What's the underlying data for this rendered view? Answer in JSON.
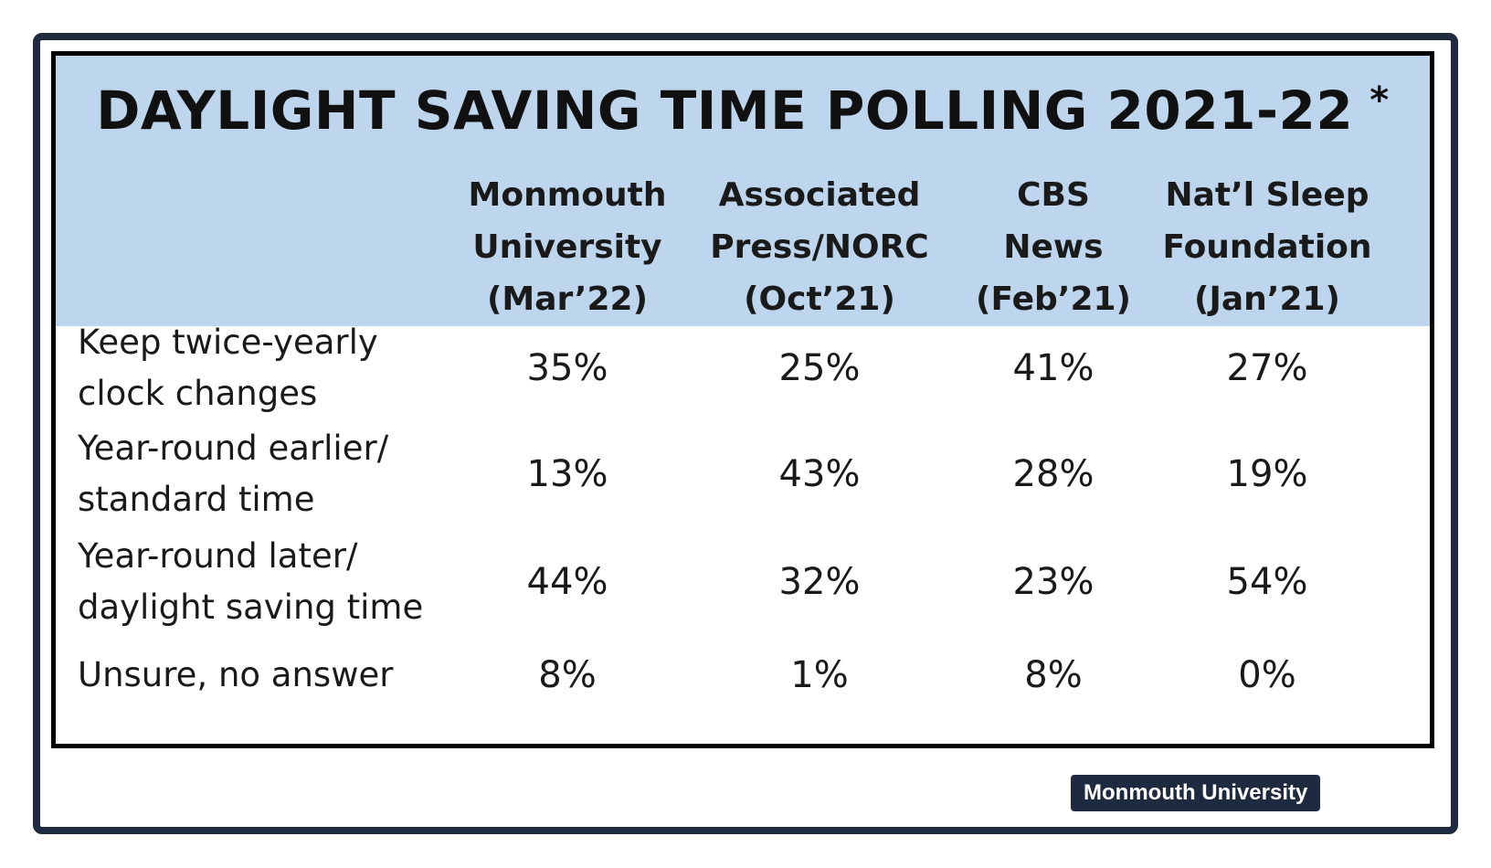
{
  "chart_data": {
    "type": "table",
    "title": "DAYLIGHT SAVING TIME POLLING 2021-22",
    "title_mark": "*",
    "columns": [
      {
        "lines": [
          "Monmouth",
          "University",
          "(Mar’22)"
        ]
      },
      {
        "lines": [
          "Associated",
          "Press/NORC",
          "(Oct’21)"
        ]
      },
      {
        "lines": [
          "CBS",
          "News",
          "(Feb’21)"
        ]
      },
      {
        "lines": [
          "Nat’l Sleep",
          "Foundation",
          "(Jan’21)"
        ]
      }
    ],
    "rows": [
      {
        "label_lines": [
          "Keep twice-yearly",
          "clock changes"
        ],
        "values": [
          "35%",
          "25%",
          "41%",
          "27%"
        ]
      },
      {
        "label_lines": [
          "Year-round earlier/",
          "standard time"
        ],
        "values": [
          "13%",
          "43%",
          "28%",
          "19%"
        ]
      },
      {
        "label_lines": [
          "Year-round later/",
          "daylight saving time"
        ],
        "values": [
          "44%",
          "32%",
          "23%",
          "54%"
        ]
      },
      {
        "label_lines": [
          "Unsure, no answer"
        ],
        "values": [
          "8%",
          "1%",
          "8%",
          "0%"
        ]
      }
    ],
    "colors": {
      "header_background": "#bdd6ee",
      "frame": "#1e2a3f",
      "table_border": "#000000"
    }
  },
  "source_badge": "Monmouth University"
}
